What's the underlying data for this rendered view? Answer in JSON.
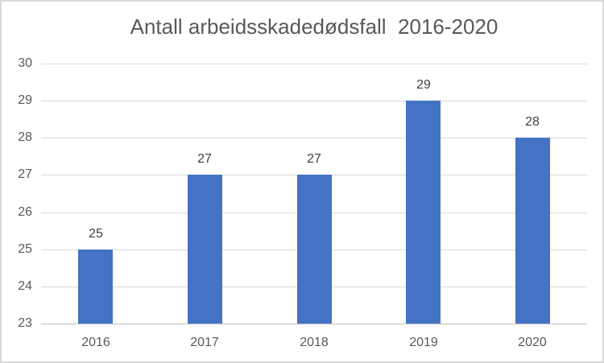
{
  "chart_data": {
    "type": "bar",
    "title": "Antall arbeidsskadedødsfall  2016-2020",
    "categories": [
      "2016",
      "2017",
      "2018",
      "2019",
      "2020"
    ],
    "values": [
      25,
      27,
      27,
      29,
      28
    ],
    "data_labels": [
      "25",
      "27",
      "27",
      "29",
      "28"
    ],
    "xlabel": "",
    "ylabel": "",
    "ylim": [
      23,
      30
    ],
    "yticks": [
      23,
      24,
      25,
      26,
      27,
      28,
      29,
      30
    ],
    "grid": true,
    "legend": false,
    "legend_position": "none",
    "data_labels_shown": true
  },
  "colors": {
    "bar_fill": "#4472C4",
    "gridline": "#D9D9D9",
    "axis_line": "#BFBFBF",
    "title_text": "#595959",
    "axis_text": "#595959",
    "data_label_text": "#404040",
    "chart_border": "#D9D9D9",
    "background": "#FFFFFF"
  }
}
